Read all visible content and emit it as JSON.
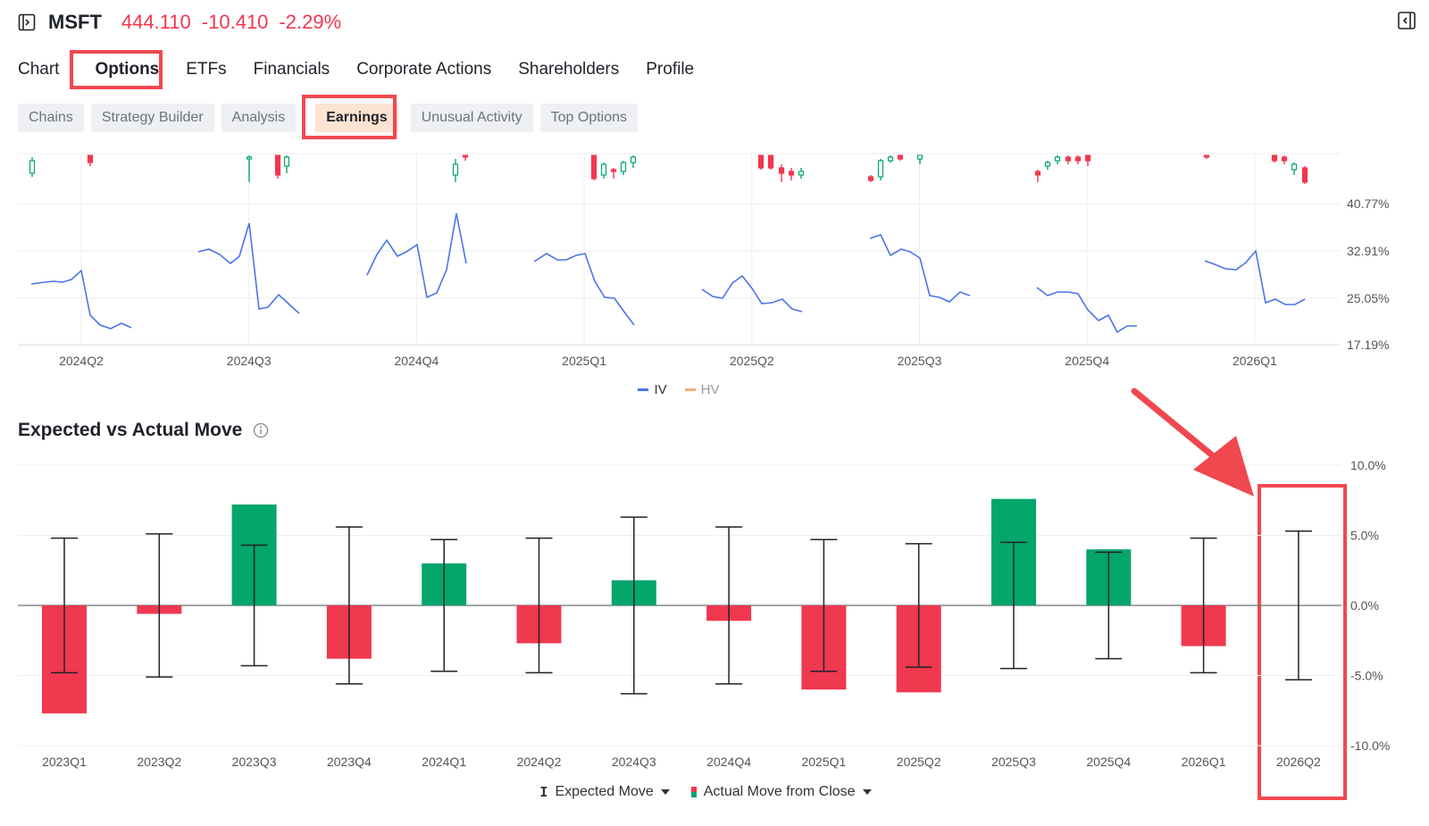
{
  "header": {
    "ticker": "MSFT",
    "price": "444.110",
    "change": "-10.410",
    "change_pct": "-2.29%",
    "price_color": "#f0384f"
  },
  "main_tabs": [
    {
      "label": "Chart"
    },
    {
      "label": "Options",
      "active": true
    },
    {
      "label": "ETFs"
    },
    {
      "label": "Financials"
    },
    {
      "label": "Corporate Actions"
    },
    {
      "label": "Shareholders"
    },
    {
      "label": "Profile"
    }
  ],
  "sub_tabs": [
    {
      "label": "Chains"
    },
    {
      "label": "Strategy Builder"
    },
    {
      "label": "Analysis"
    },
    {
      "label": "Earnings",
      "active": true
    },
    {
      "label": "Unusual Activity"
    },
    {
      "label": "Top Options"
    }
  ],
  "icons": {
    "header_left": "sidebar-expand-icon",
    "header_right": "sidebar-collapse-icon",
    "section_info": "info-icon"
  },
  "iv_chart": {
    "y_ticks": [
      "40.77%",
      "32.91%",
      "25.05%",
      "17.19%"
    ],
    "x_labels": [
      "2024Q2",
      "2024Q3",
      "2024Q4",
      "2025Q1",
      "2025Q2",
      "2025Q3",
      "2025Q4",
      "2026Q1"
    ],
    "legend": [
      {
        "label": "IV",
        "color": "#4a74e8"
      },
      {
        "label": "HV",
        "color": "#f5a97a"
      }
    ]
  },
  "section": {
    "title": "Expected vs Actual Move"
  },
  "chart_data": {
    "type": "bar",
    "categories": [
      "2023Q1",
      "2023Q2",
      "2023Q3",
      "2023Q4",
      "2024Q1",
      "2024Q2",
      "2024Q3",
      "2024Q4",
      "2025Q1",
      "2025Q2",
      "2025Q3",
      "2025Q4",
      "2026Q1",
      "2026Q2"
    ],
    "series": [
      {
        "name": "Actual Move from Close",
        "values": [
          -7.7,
          -0.6,
          7.2,
          -3.8,
          3.0,
          -2.7,
          1.8,
          -1.1,
          -6.0,
          -6.2,
          7.6,
          4.0,
          -2.9,
          null
        ]
      },
      {
        "name": "Expected Move",
        "values": [
          4.8,
          5.1,
          4.3,
          5.6,
          4.7,
          4.8,
          6.3,
          5.6,
          4.7,
          4.4,
          4.5,
          3.8,
          4.8,
          5.3
        ]
      }
    ],
    "expected_move_low": [
      -4.8,
      -5.1,
      -4.3,
      -5.6,
      -4.7,
      -4.8,
      -6.3,
      -5.6,
      -4.7,
      -4.4,
      -4.5,
      -3.8,
      -4.8,
      -5.3
    ],
    "y_ticks": [
      "10.0%",
      "5.0%",
      "0.0%",
      "-5.0%",
      "-10.0%"
    ],
    "ylim": [
      -10,
      10
    ],
    "colors": {
      "positive": "#04a66b",
      "negative": "#f0384f",
      "whisker": "#1f2329"
    },
    "grid": true,
    "legend_placement": "bottom-center"
  },
  "legend2": {
    "expected": "Expected Move",
    "actual": "Actual Move from Close"
  }
}
